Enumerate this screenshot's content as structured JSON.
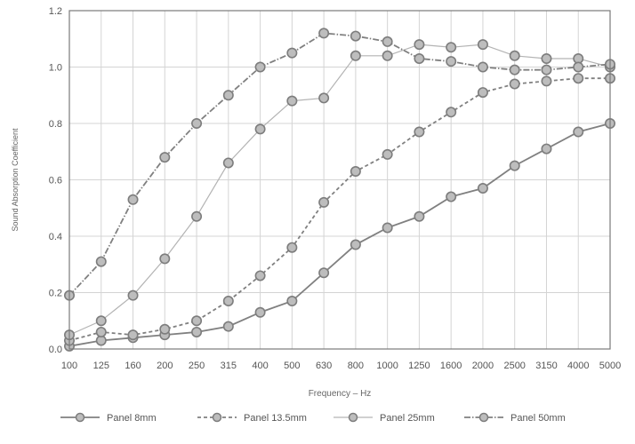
{
  "chart_data": {
    "type": "line",
    "title": "",
    "xlabel": "Frequency – Hz",
    "ylabel": "Sound Absorption Coefficient",
    "categories": [
      "100",
      "125",
      "160",
      "200",
      "250",
      "315",
      "400",
      "500",
      "630",
      "800",
      "1000",
      "1250",
      "1600",
      "2000",
      "2500",
      "3150",
      "4000",
      "5000"
    ],
    "ylim": [
      0,
      1.2
    ],
    "yticks": [
      "0.0",
      "0.2",
      "0.4",
      "0.6",
      "0.8",
      "1.0",
      "1.2"
    ],
    "grid": true,
    "legend_position": "bottom",
    "series": [
      {
        "name": "Panel 8mm",
        "style": "solid",
        "color": "#808080",
        "values": [
          0.01,
          0.03,
          0.04,
          0.05,
          0.06,
          0.08,
          0.13,
          0.17,
          0.27,
          0.37,
          0.43,
          0.47,
          0.54,
          0.57,
          0.65,
          0.71,
          0.77,
          0.8
        ]
      },
      {
        "name": "Panel 13.5mm",
        "style": "dashed",
        "color": "#808080",
        "values": [
          0.03,
          0.06,
          0.05,
          0.07,
          0.1,
          0.17,
          0.26,
          0.36,
          0.52,
          0.63,
          0.69,
          0.77,
          0.84,
          0.91,
          0.94,
          0.95,
          0.96,
          0.96
        ]
      },
      {
        "name": "Panel 25mm",
        "style": "thin",
        "color": "#b3b3b3",
        "values": [
          0.05,
          0.1,
          0.19,
          0.32,
          0.47,
          0.66,
          0.78,
          0.88,
          0.89,
          1.04,
          1.04,
          1.08,
          1.07,
          1.08,
          1.04,
          1.03,
          1.03,
          1.0
        ]
      },
      {
        "name": "Panel 50mm",
        "style": "dashdot",
        "color": "#808080",
        "values": [
          0.19,
          0.31,
          0.53,
          0.68,
          0.8,
          0.9,
          1.0,
          1.05,
          1.12,
          1.11,
          1.09,
          1.03,
          1.02,
          1.0,
          0.99,
          0.99,
          1.0,
          1.01
        ]
      }
    ]
  }
}
